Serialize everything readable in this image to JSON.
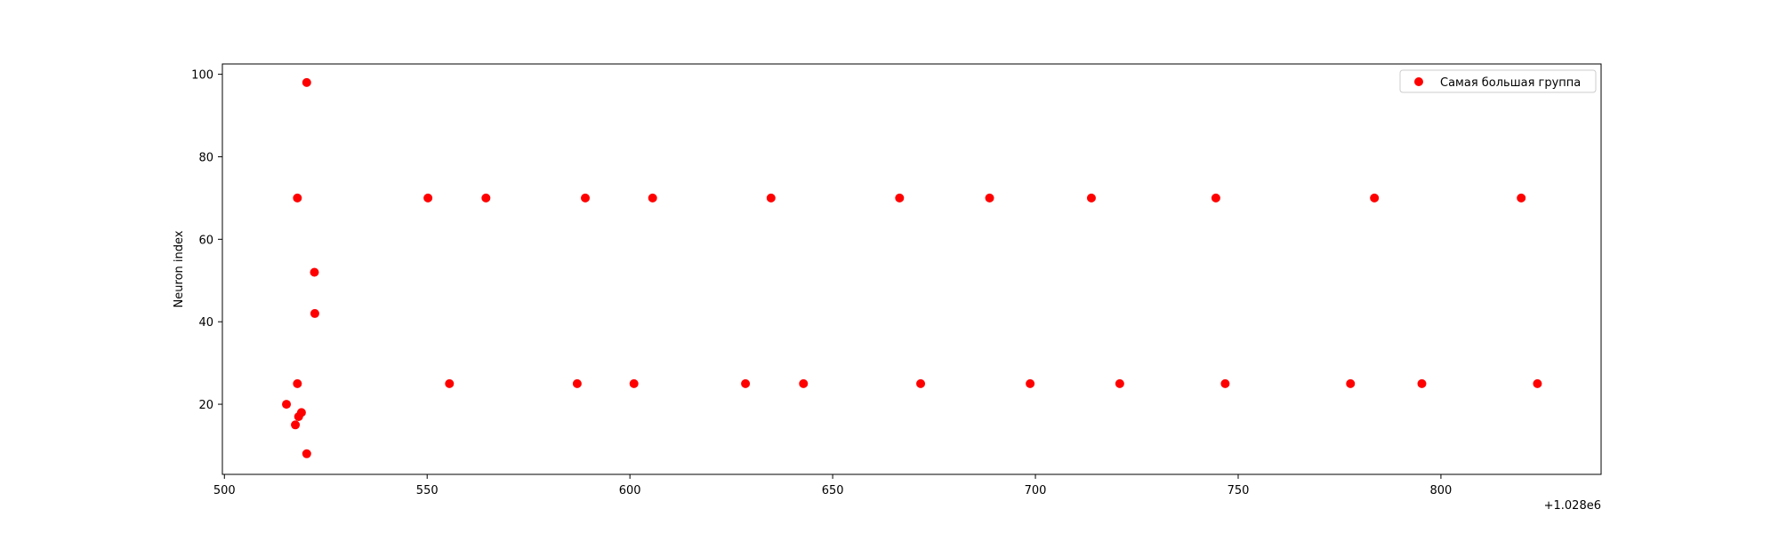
{
  "chart_data": {
    "type": "scatter",
    "title": "",
    "xlabel": "",
    "ylabel": "Neuron index",
    "x_offset_label": "+1.028e6",
    "xlim": [
      1028499.5,
      1028839.5
    ],
    "ylim": [
      3,
      102.5
    ],
    "xticks": [
      500,
      550,
      600,
      650,
      700,
      750,
      800
    ],
    "yticks": [
      20,
      40,
      60,
      80,
      100
    ],
    "grid": false,
    "legend_position": "top-right",
    "colors": {
      "series": "#ff0000",
      "axes": "#000000",
      "legend_border": "#cccccc"
    },
    "series": [
      {
        "name": "Самая большая группа",
        "points": [
          {
            "x": 1028515.3,
            "y": 20
          },
          {
            "x": 1028517.5,
            "y": 15
          },
          {
            "x": 1028518.0,
            "y": 70
          },
          {
            "x": 1028518.0,
            "y": 25
          },
          {
            "x": 1028518.3,
            "y": 17
          },
          {
            "x": 1028519.0,
            "y": 18
          },
          {
            "x": 1028520.3,
            "y": 98
          },
          {
            "x": 1028520.3,
            "y": 8
          },
          {
            "x": 1028522.2,
            "y": 52
          },
          {
            "x": 1028522.3,
            "y": 42
          },
          {
            "x": 1028550.2,
            "y": 70
          },
          {
            "x": 1028555.5,
            "y": 25
          },
          {
            "x": 1028564.5,
            "y": 70
          },
          {
            "x": 1028587.0,
            "y": 25
          },
          {
            "x": 1028589.0,
            "y": 70
          },
          {
            "x": 1028601.0,
            "y": 25
          },
          {
            "x": 1028605.6,
            "y": 70
          },
          {
            "x": 1028628.5,
            "y": 25
          },
          {
            "x": 1028634.8,
            "y": 70
          },
          {
            "x": 1028642.8,
            "y": 25
          },
          {
            "x": 1028666.5,
            "y": 70
          },
          {
            "x": 1028671.7,
            "y": 25
          },
          {
            "x": 1028688.7,
            "y": 70
          },
          {
            "x": 1028698.7,
            "y": 25
          },
          {
            "x": 1028713.8,
            "y": 70
          },
          {
            "x": 1028720.8,
            "y": 25
          },
          {
            "x": 1028744.5,
            "y": 70
          },
          {
            "x": 1028746.8,
            "y": 25
          },
          {
            "x": 1028777.7,
            "y": 25
          },
          {
            "x": 1028783.6,
            "y": 70
          },
          {
            "x": 1028795.3,
            "y": 25
          },
          {
            "x": 1028819.8,
            "y": 70
          },
          {
            "x": 1028823.8,
            "y": 25
          }
        ]
      }
    ]
  }
}
